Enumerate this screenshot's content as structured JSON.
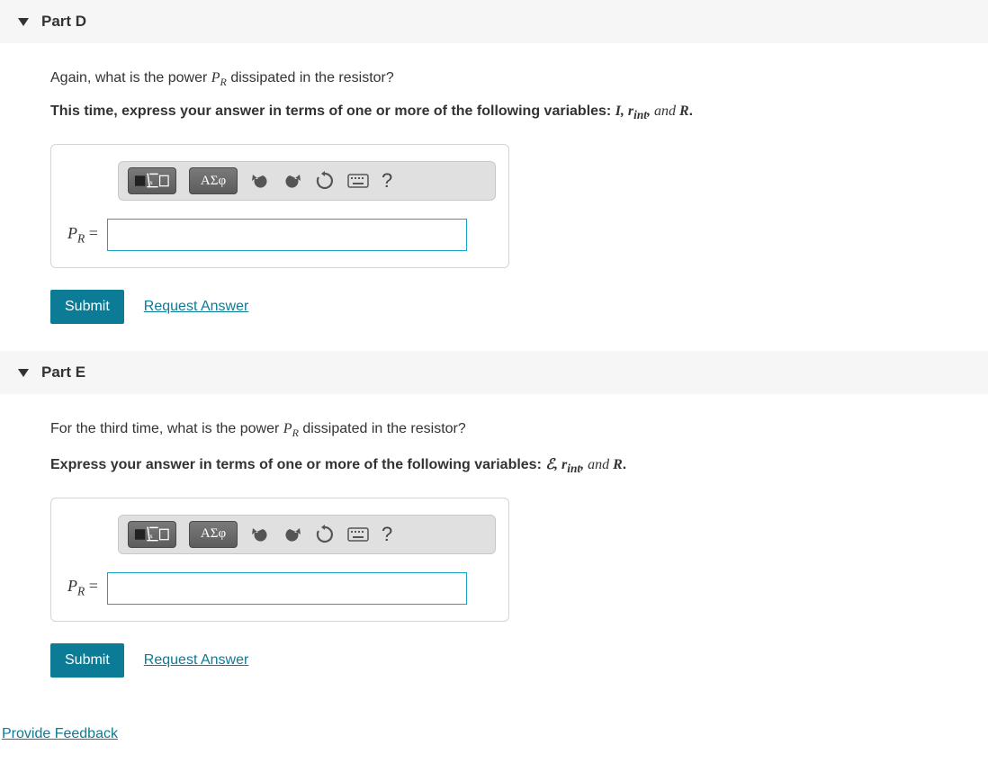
{
  "parts": [
    {
      "id": "D",
      "title": "Part D",
      "question_prefix": "Again, what is the power ",
      "question_var": "P",
      "question_var_sub": "R",
      "question_suffix": " dissipated in the resistor?",
      "instruction_prefix": "This time, express your answer in terms of one or more of the following variables: ",
      "instruction_vars_html": "I, r<sub>int</sub>, <span style='font-weight:400'>and</span> R",
      "instruction_suffix": ".",
      "label_prefix": "P",
      "label_sub": "R",
      "label_eq": " = ",
      "input_value": "",
      "submit_label": "Submit",
      "request_answer_label": "Request Answer",
      "toolbar": {
        "greek_label": "ΑΣφ",
        "help_label": "?"
      }
    },
    {
      "id": "E",
      "title": "Part E",
      "question_prefix": "For the third time, what is the power ",
      "question_var": "P",
      "question_var_sub": "R",
      "question_suffix": " dissipated in the resistor?",
      "instruction_prefix": "Express your answer in terms of one or more of the following variables: ",
      "instruction_vars_html": "ℰ, r<sub>int</sub>, <span style='font-weight:400'>and</span> R",
      "instruction_suffix": ".",
      "label_prefix": "P",
      "label_sub": "R",
      "label_eq": " = ",
      "input_value": "",
      "submit_label": "Submit",
      "request_answer_label": "Request Answer",
      "toolbar": {
        "greek_label": "ΑΣφ",
        "help_label": "?"
      }
    }
  ],
  "provide_feedback_label": "Provide Feedback",
  "colors": {
    "accent": "#0b7b96",
    "header_bg": "#f6f6f6",
    "toolbar_bg": "#e0e0e0",
    "input_border": "#15a4c7"
  }
}
